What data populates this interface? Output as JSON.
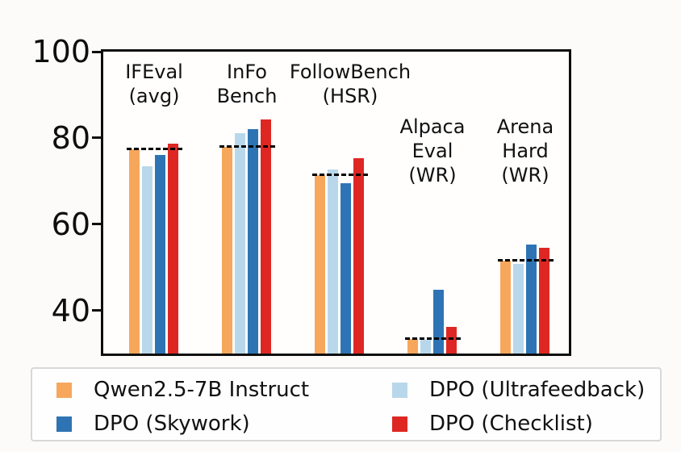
{
  "chart_data": {
    "type": "bar",
    "title": "",
    "xlabel": "",
    "ylabel": "",
    "ylim": [
      30,
      100
    ],
    "yticks": [
      100,
      80,
      60,
      40
    ],
    "ytick_labels": [
      "100",
      "80",
      "60",
      "40"
    ],
    "grid": false,
    "axes_box": true,
    "legend_position": "bottom",
    "categories": [
      "IFEval (avg)",
      "InFoBench",
      "FollowBench (HSR)",
      "AlpacaEval (WR)",
      "Arena Hard (WR)"
    ],
    "category_label_lines": [
      [
        "IFEval",
        "(avg)"
      ],
      [
        "InFo",
        "Bench"
      ],
      [
        "FollowBench",
        "(HSR)"
      ],
      [
        "Alpaca",
        "Eval",
        "(WR)"
      ],
      [
        "Arena",
        "Hard",
        "(WR)"
      ]
    ],
    "series": [
      {
        "name": "Qwen2.5-7B Instruct",
        "color": "#F7A75C",
        "values": [
          77.3,
          78.0,
          71.4,
          33.4,
          51.6
        ]
      },
      {
        "name": "DPO (Ultrafeedback)",
        "color": "#B9D7EA",
        "values": [
          73.5,
          81.1,
          72.6,
          33.2,
          50.7
        ]
      },
      {
        "name": "DPO (Skywork)",
        "color": "#2E74B4",
        "values": [
          76.0,
          82.0,
          69.4,
          44.8,
          55.2
        ]
      },
      {
        "name": "DPO (Checklist)",
        "color": "#DE2723",
        "values": [
          78.6,
          84.2,
          75.3,
          36.1,
          54.5
        ]
      }
    ],
    "baseline_dashes": {
      "style": "black dashed horizontal segment per group",
      "values": [
        77.3,
        78.0,
        71.4,
        33.4,
        51.6
      ]
    }
  },
  "legend": {
    "columns": [
      {
        "items": [
          {
            "label": "Qwen2.5-7B Instruct",
            "color": "#F7A75C"
          },
          {
            "label": "DPO (Skywork)",
            "color": "#2E74B4"
          }
        ]
      },
      {
        "items": [
          {
            "label": "DPO (Ultrafeedback)",
            "color": "#B9D7EA"
          },
          {
            "label": "DPO (Checklist)",
            "color": "#DE2723"
          }
        ]
      }
    ]
  }
}
